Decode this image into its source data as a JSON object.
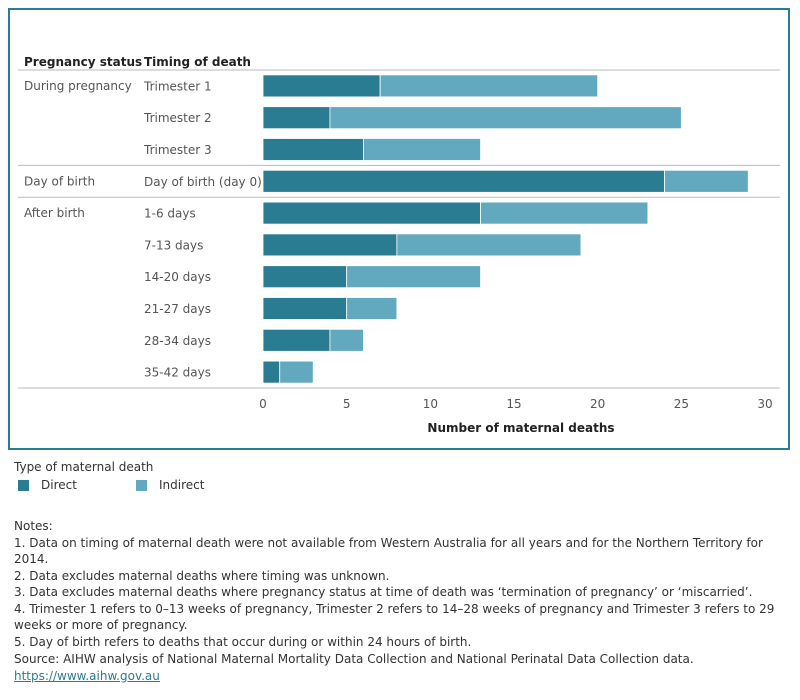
{
  "chart_data": {
    "type": "bar",
    "orientation": "horizontal",
    "stacked": true,
    "column_headers": [
      "Pregnancy status",
      "Timing of death"
    ],
    "groups": [
      {
        "label": "During pregnancy",
        "categories": [
          "Trimester 1",
          "Trimester 2",
          "Trimester 3"
        ]
      },
      {
        "label": "Day of birth",
        "categories": [
          "Day of birth (day 0)"
        ]
      },
      {
        "label": "After birth",
        "categories": [
          "1-6 days",
          "7-13 days",
          "14-20 days",
          "21-27 days",
          "28-34 days",
          "35-42 days"
        ]
      }
    ],
    "categories": [
      "Trimester 1",
      "Trimester 2",
      "Trimester 3",
      "Day of birth (day 0)",
      "1-6 days",
      "7-13 days",
      "14-20 days",
      "21-27 days",
      "28-34 days",
      "35-42 days"
    ],
    "series": [
      {
        "name": "Direct",
        "color": "#2a7c93",
        "values": [
          7,
          4,
          6,
          24,
          13,
          8,
          5,
          5,
          4,
          1
        ]
      },
      {
        "name": "Indirect",
        "color": "#62a9c0",
        "values": [
          13,
          21,
          7,
          5,
          10,
          11,
          8,
          3,
          2,
          2
        ]
      }
    ],
    "xlabel": "Number of maternal deaths",
    "xlim": [
      0,
      30
    ],
    "xticks": [
      0,
      5,
      10,
      15,
      20,
      25,
      30
    ],
    "legend_title": "Type of maternal death",
    "legend_position": "bottom-left",
    "grid": false
  },
  "notes": {
    "title": "Notes:",
    "lines": [
      "1. Data on timing of maternal death were not available from Western Australia for all years and for the Northern Territory for 2014.",
      "2. Data excludes maternal deaths where timing was unknown.",
      "3. Data excludes maternal deaths where pregnancy status at time of death was ‘termination of pregnancy’ or ‘miscarried’.",
      "4. Trimester 1 refers to 0–13 weeks of pregnancy, Trimester 2 refers to 14–28 weeks of pregnancy and Trimester 3 refers to 29 weeks or more of pregnancy.",
      "5. Day of birth refers to deaths that occur during or within 24 hours of birth."
    ]
  },
  "source": {
    "text": "Source: AIHW analysis of National Maternal Mortality Data Collection and National Perinatal Data Collection data.",
    "link": "https://www.aihw.gov.au"
  },
  "colors": {
    "frame": "#2a7c93",
    "direct": "#2a7c93",
    "indirect": "#62a9c0"
  }
}
